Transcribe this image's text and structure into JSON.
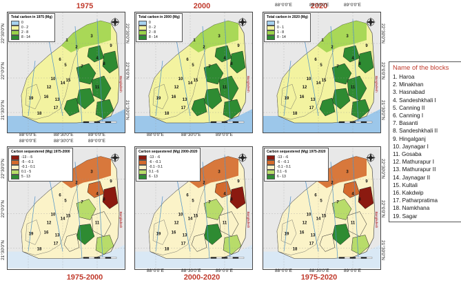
{
  "top_titles": [
    "1975",
    "2000",
    "2020"
  ],
  "bottom_titles": [
    "1975-2000",
    "2000-2020",
    "1975-2020"
  ],
  "lat_labels": [
    "22°30'0\"N",
    "22°0'0\"N",
    "21°30'0\"N"
  ],
  "lon_labels": [
    "88°0'0\"E",
    "88°30'0\"E",
    "89°0'0\"E"
  ],
  "legends_top": [
    {
      "title": "Total carbon in 1975 (Mg)",
      "items": [
        "0",
        "0 - 2",
        "2 - 8",
        "8 - 14"
      ]
    },
    {
      "title": "Total carbon in 2000 (Mg)",
      "items": [
        "0",
        "0 - 2",
        "2 - 8",
        "8 - 14"
      ]
    },
    {
      "title": "Total carbon in 2020 (Mg)",
      "items": [
        "0",
        "0 - 1",
        "1 - 8",
        "8 - 14"
      ]
    }
  ],
  "legends_bottom": [
    {
      "title": "Carbon sequestered (Mg) 1975-2000",
      "items": [
        "-13 - -5",
        "-5 - -0.1",
        "-0.1 - 0.1",
        "0.1 - 5",
        "5 - 13"
      ]
    },
    {
      "title": "Carbon sequestered (Mg) 2000-2020",
      "items": [
        "-13 - -6",
        "-6 - -0.1",
        "-0.1 - 0.1",
        "0.1 - 6",
        "6 - 13"
      ]
    },
    {
      "title": "Carbon sequestered (Mg) 1975-2020",
      "items": [
        "-13 - -6",
        "-6 - -0.1",
        "-0.1 - 0.1",
        "0.1 - 6",
        "6 - 13"
      ]
    }
  ],
  "colors": {
    "top": [
      "#a6d1ef",
      "#f3f3a0",
      "#9bd24a",
      "#2e8b32"
    ],
    "bottom": [
      "#8b1a10",
      "#d46a2c",
      "#fbf3c8",
      "#b8dc6a",
      "#2e8b32"
    ],
    "sea": "#9cc7ea",
    "outside": "#e8e8e8",
    "title_red": "#c0392b"
  },
  "block_list": {
    "title": "Name of the blocks",
    "items": [
      "1. Haroa",
      "2. Minakhan",
      "3. Hasnabad",
      "4. Sandeshkhali I",
      "5. Canning II",
      "6. Canning I",
      "7. Basanti",
      "8. Sandeshkhali II",
      "9. Hingalganj",
      "10. Jaynagar I",
      "11. Gosaba",
      "12. Mathurapur I",
      "13. Mathurapur II",
      "14. Jaynagar II",
      "15. Kultali",
      "16. Kakdwip",
      "17. Patharpratima",
      "18. Namkhana",
      "19. Sagar"
    ]
  },
  "map_labels": [
    "1",
    "2",
    "3",
    "4",
    "5",
    "6",
    "7",
    "8",
    "9",
    "10",
    "11",
    "12",
    "13",
    "14",
    "15",
    "16",
    "17",
    "18",
    "19"
  ],
  "place_labels": {
    "bangladesh": "Bangladesh"
  }
}
